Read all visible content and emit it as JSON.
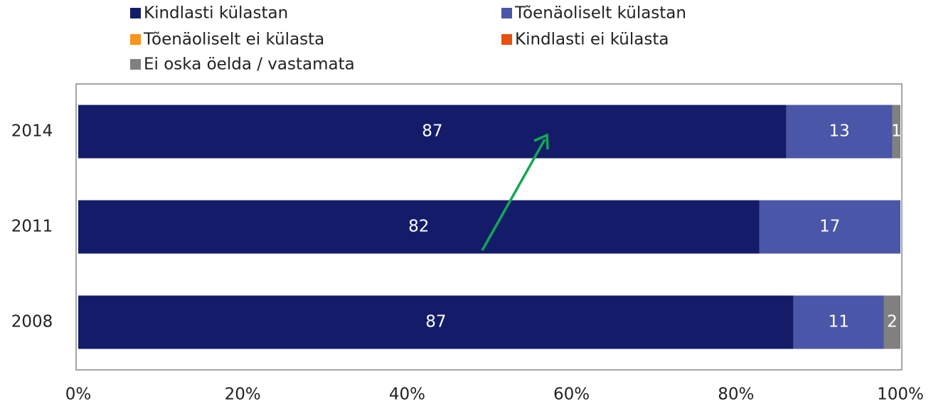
{
  "chart_data": {
    "type": "bar",
    "orientation": "horizontal",
    "stack": "percent",
    "categories": [
      "2014",
      "2011",
      "2008"
    ],
    "series": [
      {
        "name": "Kindlasti külastan",
        "color": "#141c6a",
        "values": [
          87,
          82,
          87
        ]
      },
      {
        "name": "Tõenäoliselt külastan",
        "color": "#4a56a8",
        "values": [
          13,
          17,
          11
        ]
      },
      {
        "name": "Tõenäoliselt ei külasta",
        "color": "#f7941d",
        "values": [
          null,
          null,
          null
        ]
      },
      {
        "name": "Kindlasti ei külasta",
        "color": "#e8500f",
        "values": [
          null,
          null,
          null
        ]
      },
      {
        "name": "Ei oska öelda / vastamata",
        "color": "#808080",
        "values": [
          1,
          null,
          2
        ]
      }
    ],
    "xlim": [
      0,
      100
    ],
    "xticks": [
      {
        "value": 0,
        "label": "0%"
      },
      {
        "value": 20,
        "label": "20%"
      },
      {
        "value": 40,
        "label": "40%"
      },
      {
        "value": 60,
        "label": "60%"
      },
      {
        "value": 80,
        "label": "80%"
      },
      {
        "value": 100,
        "label": "100%"
      }
    ],
    "legend": "top"
  }
}
